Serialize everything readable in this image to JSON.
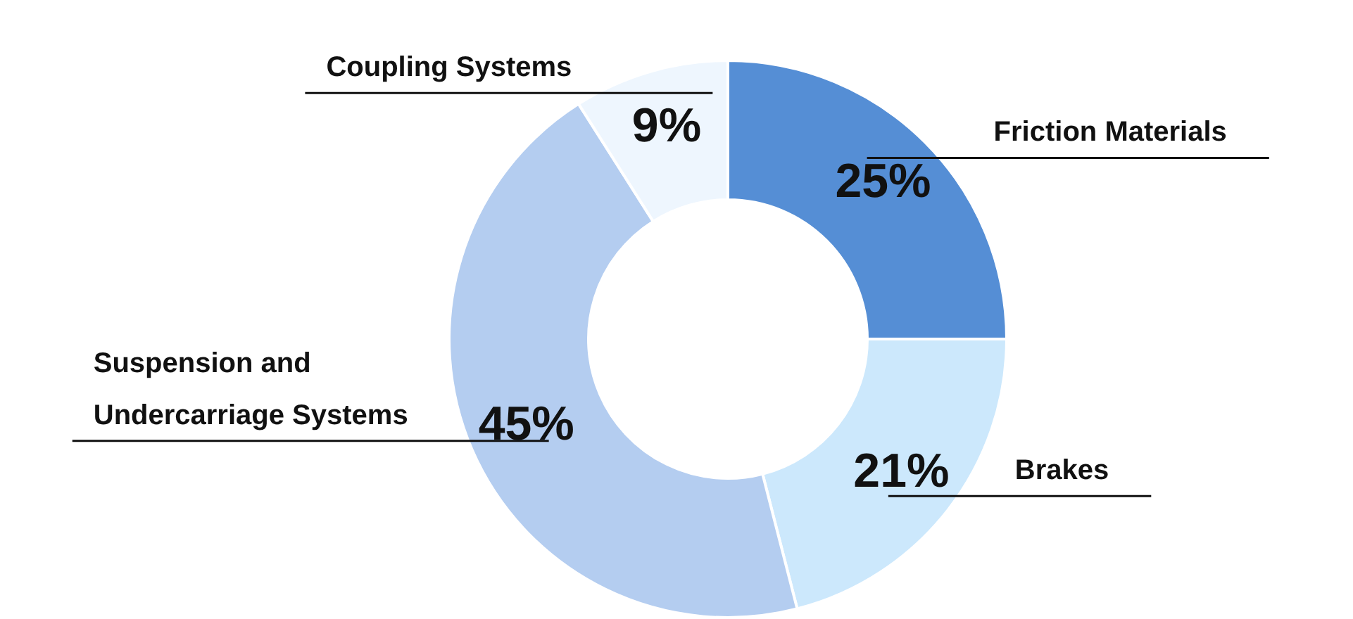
{
  "chart_data": {
    "type": "donut",
    "categories": [
      "Friction Materials",
      "Brakes",
      "Suspension and Undercarriage Systems",
      "Coupling Systems"
    ],
    "values": [
      25,
      21,
      45,
      9
    ],
    "colors": [
      "#558ed5",
      "#cce8fc",
      "#b4cdf0",
      "#eef6fe"
    ],
    "value_labels": [
      "25%",
      "21%",
      "45%",
      "9%"
    ],
    "legend": false
  }
}
